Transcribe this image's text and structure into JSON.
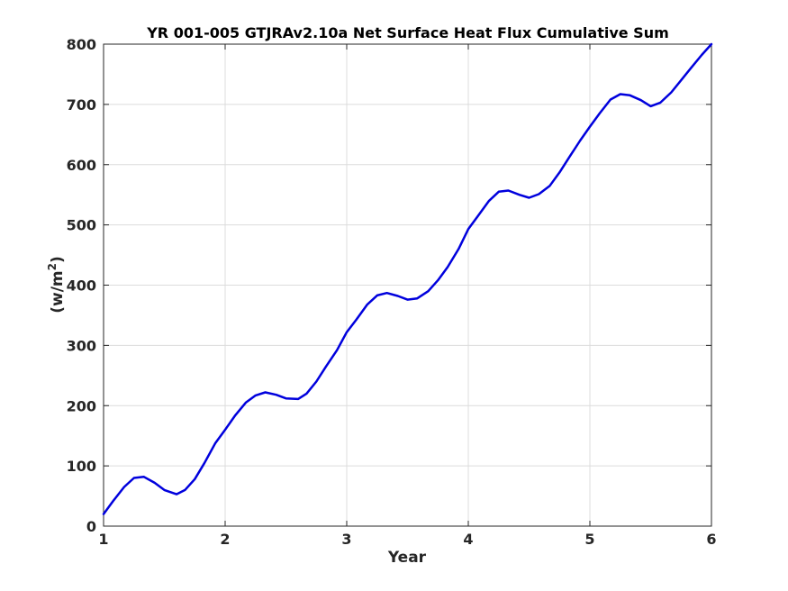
{
  "chart_data": {
    "type": "line",
    "title": "YR 001-005 GTJRAv2.10a Net Surface Heat Flux  Cumulative Sum",
    "xlabel": "Year",
    "ylabel_base": "(w/m",
    "ylabel_sup": "2",
    "ylabel_close": ")",
    "xlim": [
      1,
      6
    ],
    "ylim": [
      0,
      800
    ],
    "xticks": [
      1,
      2,
      3,
      4,
      5,
      6
    ],
    "yticks": [
      0,
      100,
      200,
      300,
      400,
      500,
      600,
      700,
      800
    ],
    "grid": true,
    "series_color": "#0000dd",
    "series": [
      {
        "x": [
          1.0,
          1.08,
          1.17,
          1.25,
          1.33,
          1.42,
          1.5,
          1.6,
          1.67,
          1.75,
          1.83,
          1.92,
          2.0,
          2.08,
          2.17,
          2.25,
          2.33,
          2.42,
          2.5,
          2.6,
          2.67,
          2.75,
          2.83,
          2.92,
          3.0,
          3.08,
          3.17,
          3.25,
          3.33,
          3.42,
          3.5,
          3.58,
          3.67,
          3.75,
          3.83,
          3.92,
          4.0,
          4.08,
          4.17,
          4.25,
          4.33,
          4.42,
          4.5,
          4.58,
          4.67,
          4.75,
          4.83,
          4.92,
          5.0,
          5.08,
          5.17,
          5.25,
          5.33,
          5.42,
          5.5,
          5.58,
          5.67,
          5.75,
          5.83,
          5.92,
          6.0
        ],
        "y": [
          20,
          42,
          65,
          80,
          82,
          72,
          60,
          53,
          60,
          78,
          105,
          138,
          160,
          183,
          205,
          217,
          222,
          218,
          212,
          211,
          220,
          240,
          265,
          292,
          322,
          343,
          368,
          383,
          387,
          382,
          376,
          378,
          390,
          408,
          430,
          460,
          493,
          515,
          540,
          555,
          557,
          550,
          545,
          551,
          565,
          587,
          612,
          640,
          663,
          685,
          708,
          717,
          715,
          707,
          697,
          703,
          720,
          740,
          760,
          782,
          800
        ]
      }
    ]
  }
}
